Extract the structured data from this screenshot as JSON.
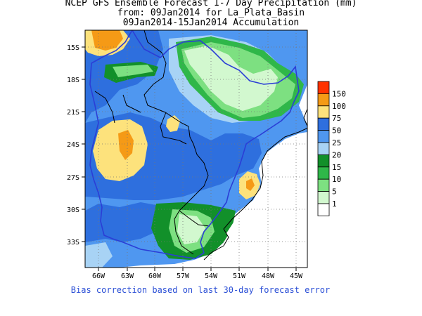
{
  "title": {
    "line1": "NCEP GFS Ensemble Forecast 1-7 Day Precipitation (mm)",
    "line2": "from: 09Jan2014   for La_Plata_Basin",
    "line3": "09Jan2014-15Jan2014 Accumulation"
  },
  "axes": {
    "lat_labels": [
      "15S",
      "18S",
      "21S",
      "24S",
      "27S",
      "30S",
      "33S"
    ],
    "lon_labels": [
      "66W",
      "63W",
      "60W",
      "57W",
      "54W",
      "51W",
      "48W",
      "45W"
    ]
  },
  "legend": {
    "levels": [
      "150",
      "100",
      "75",
      "50",
      "25",
      "20",
      "15",
      "10",
      "5",
      "1"
    ],
    "colors": [
      "#ff3300",
      "#f59a16",
      "#fde27c",
      "#2e6fde",
      "#4f97f0",
      "#a8d3f5",
      "#12902a",
      "#2fb749",
      "#7de081",
      "#d2f8cf",
      "#ffffff"
    ]
  },
  "footer": "Bias correction based on last 30-day forecast error"
}
